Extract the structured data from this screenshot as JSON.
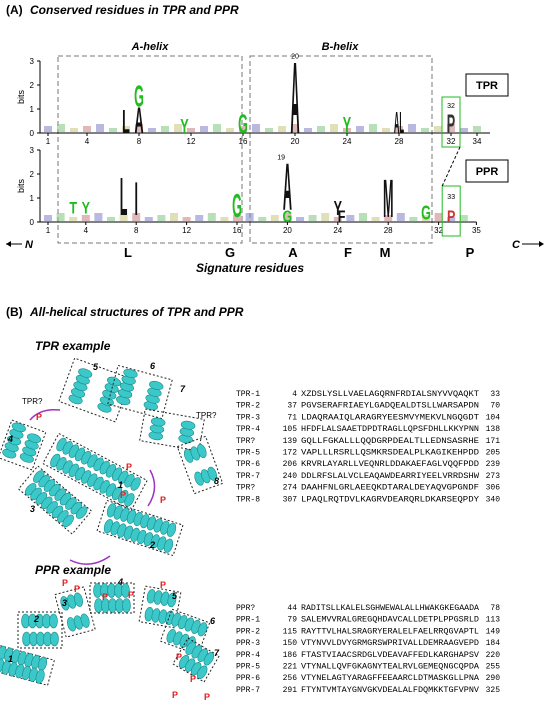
{
  "panel_a": {
    "label": "(A)",
    "title": "Conserved residues in TPR and PPR",
    "a_helix": "A-helix",
    "b_helix": "B-helix",
    "tpr_logo": {
      "name": "TPR",
      "ylabel": "bits",
      "yticks": [
        0,
        1,
        2,
        3
      ],
      "xticks": [
        1,
        4,
        8,
        12,
        16,
        20,
        24,
        28,
        32,
        34
      ],
      "letters": [
        "L",
        "A",
        "G",
        "Y",
        "G",
        "A",
        "Y",
        "AL",
        "P"
      ],
      "marks": [
        "20",
        "32"
      ]
    },
    "ppr_logo": {
      "name": "PPR",
      "ylabel": "bits",
      "yticks": [
        0,
        1,
        2,
        3
      ],
      "xticks": [
        1,
        4,
        8,
        12,
        16,
        20,
        24,
        28,
        32,
        35
      ],
      "letters": [
        "T",
        "Y",
        "L",
        "I",
        "G",
        "A",
        "G",
        "Y",
        "F",
        "M",
        "G",
        "P"
      ],
      "marks": [
        "19",
        "33"
      ]
    },
    "signature": {
      "title": "Signature residues",
      "residues": [
        "L",
        "G",
        "A",
        "F",
        "M",
        "P"
      ],
      "n_term": "N",
      "c_term": "C"
    }
  },
  "panel_b": {
    "label": "(B)",
    "title": "All-helical structures of TPR and PPR",
    "tpr_example": {
      "title": "TPR example",
      "helix_labels": [
        "1",
        "2",
        "3",
        "4",
        "5",
        "6",
        "7",
        "8"
      ],
      "unknown_labels": [
        "TPR?",
        "TPR?"
      ],
      "proline_labels": [
        "P",
        "P",
        "P",
        "P",
        "P"
      ],
      "rows": [
        [
          "TPR-1",
          "4",
          "XZDSLYSLLVAELAGQRNFRDIALSNYVVQAQKT",
          "33"
        ],
        [
          "TPR-2",
          "37",
          "PGVSERAFRIAEYLGADQEALDTSLLWARSAPDN",
          "70"
        ],
        [
          "TPR-3",
          "71",
          "LDAQRAAIQLARAGRYEESMVYMEKVLNGQGDT",
          "104"
        ],
        [
          "TPR-4",
          "105",
          "HFDFLALSAAETDPDTRAGLLQPSFDHLLKKYPNN",
          "138"
        ],
        [
          "TPR?",
          "139",
          "GQLLFGKALLLQQDGRPDEALTLLEDNSASRHE",
          "171"
        ],
        [
          "TPR-5",
          "172",
          "VAPLLLRSRLLQSMKRSDEALPLKAGIKEHPDD",
          "205"
        ],
        [
          "TPR-6",
          "206",
          "KRVRLAYARLLVEQNRLDDAKAEFAGLVQQFPDD",
          "239"
        ],
        [
          "TPR-7",
          "240",
          "DDLRFSLALVCLEAQAWDEARRIYEELVRRDSHW",
          "273"
        ],
        [
          "TPR?",
          "274",
          "DAAHFNLGRLAEEQKDTARALDEYAQVGPGNDF",
          "306"
        ],
        [
          "TPR-8",
          "307",
          "LPAQLRQTDVLKAGRVDEARQRLDKARSEQPDY",
          "340"
        ]
      ]
    },
    "ppr_example": {
      "title": "PPR example",
      "helix_labels": [
        "1",
        "2",
        "3",
        "4",
        "5",
        "6",
        "7"
      ],
      "proline_labels": [
        "P",
        "P",
        "P",
        "P",
        "P",
        "P",
        "P",
        "P"
      ],
      "rows": [
        [
          "PPR?",
          "44",
          "RADITSLLKALELSGHWEWALALLHWAKGKEGAADA",
          "78"
        ],
        [
          "PPR-1",
          "79",
          "SALEMVVRALGREGQHDAVCALLDETPLPPGSRLD",
          "113"
        ],
        [
          "PPR-2",
          "115",
          "RAYTTVLHALSRAGRYERALELFAELRRQGVAPTL",
          "149"
        ],
        [
          "PPR-3",
          "150",
          "VTYNVVLDVYGRMGRSWPRIVALLDEMRAAGVEPD",
          "184"
        ],
        [
          "PPR-4",
          "186",
          "FTASTVIAACSRDGLVDEAVAFFEDLKARGHAPSV",
          "220"
        ],
        [
          "PPR-5",
          "221",
          "VTYNALLQVFGKAGNYTEALRVLGEMEQNGCQPDA",
          "255"
        ],
        [
          "PPR-6",
          "256",
          "VTYNELAGTYARAGFFEEAARCLDTMASKGLLPNA",
          "290"
        ],
        [
          "PPR-7",
          "291",
          "FTYNTVMTAYGNVGKVDEALALFDQMKKTGFVPNV",
          "325"
        ]
      ]
    }
  }
}
